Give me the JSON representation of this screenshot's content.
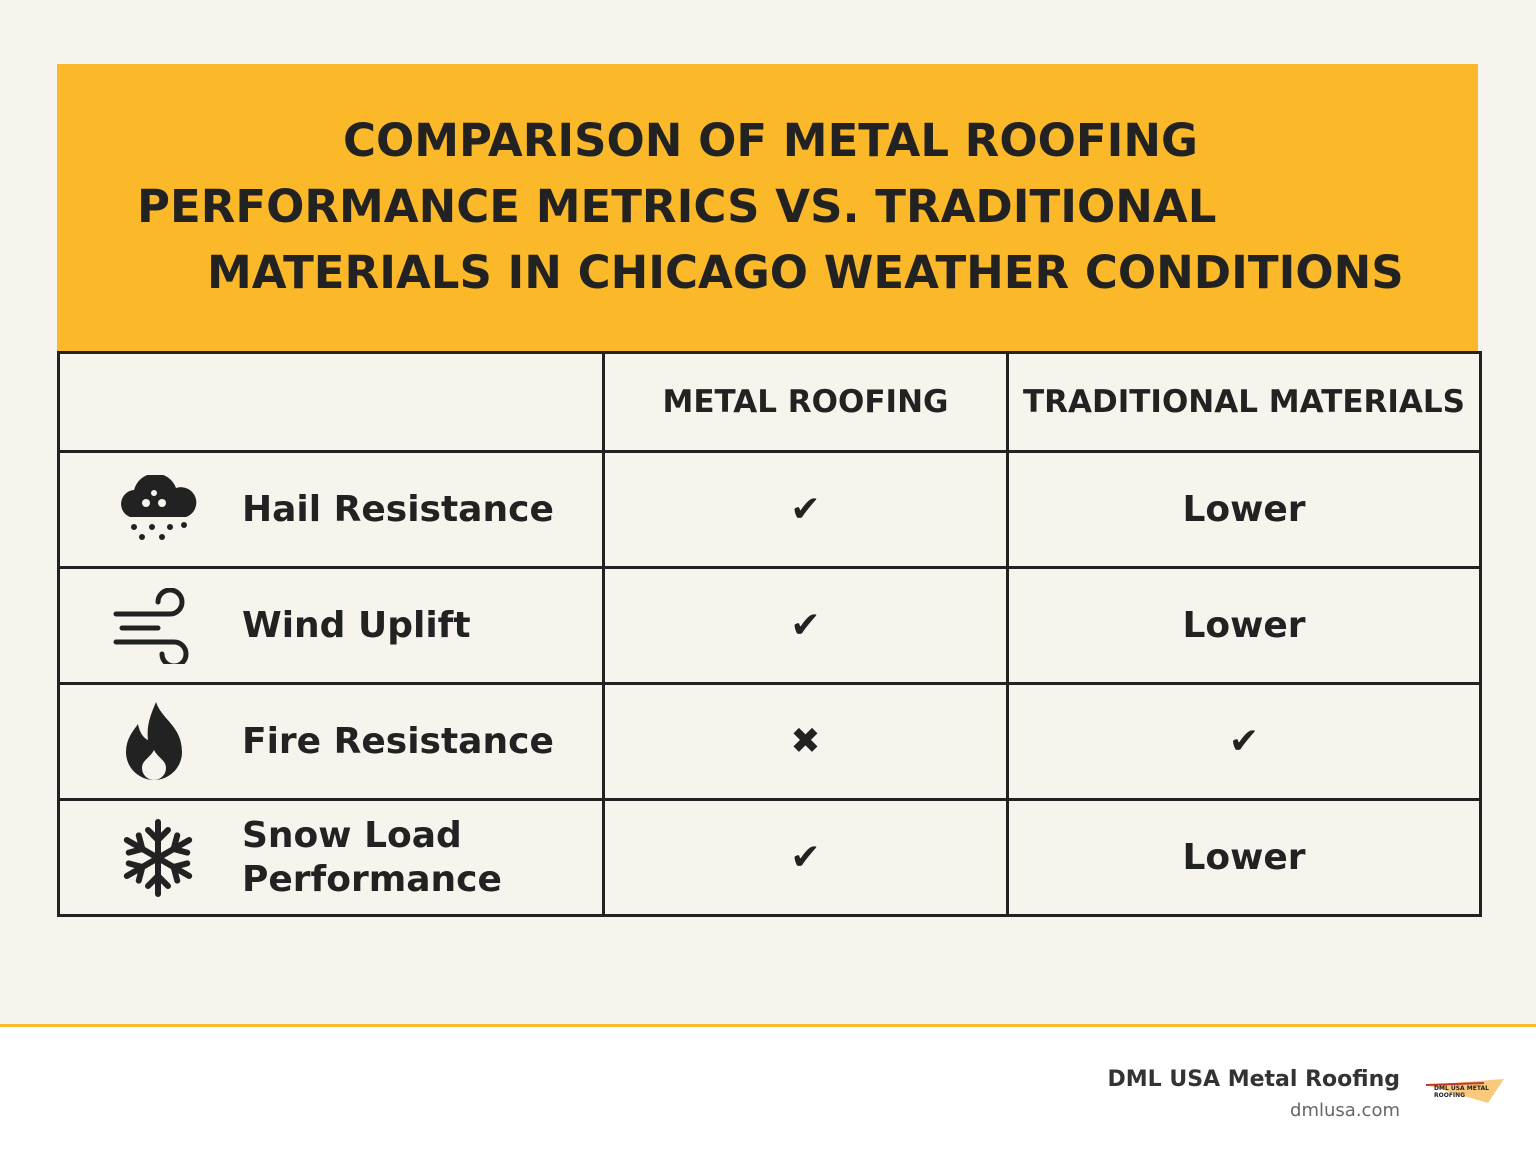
{
  "header": {
    "title_lines": [
      "COMPARISON OF METAL ROOFING",
      "PERFORMANCE METRICS VS. TRADITIONAL",
      "MATERIALS IN CHICAGO WEATHER CONDITIONS"
    ]
  },
  "table": {
    "columns": [
      "METAL ROOFING",
      "TRADITIONAL MATERIALS"
    ],
    "rows": [
      {
        "label": "Hail Resistance",
        "metal": "✔",
        "traditional": "Lower"
      },
      {
        "label": "Wind Uplift",
        "metal": "✔",
        "traditional": "Lower"
      },
      {
        "label": "Fire Resistance",
        "metal": "✖",
        "traditional": "✔"
      },
      {
        "label": "Snow Load Performance",
        "metal": "✔",
        "traditional": "Lower"
      }
    ]
  },
  "footer": {
    "company": "DML USA Metal Roofing",
    "website": "dmlusa.com",
    "logo_text": "DML USA METAL ROOFING"
  }
}
